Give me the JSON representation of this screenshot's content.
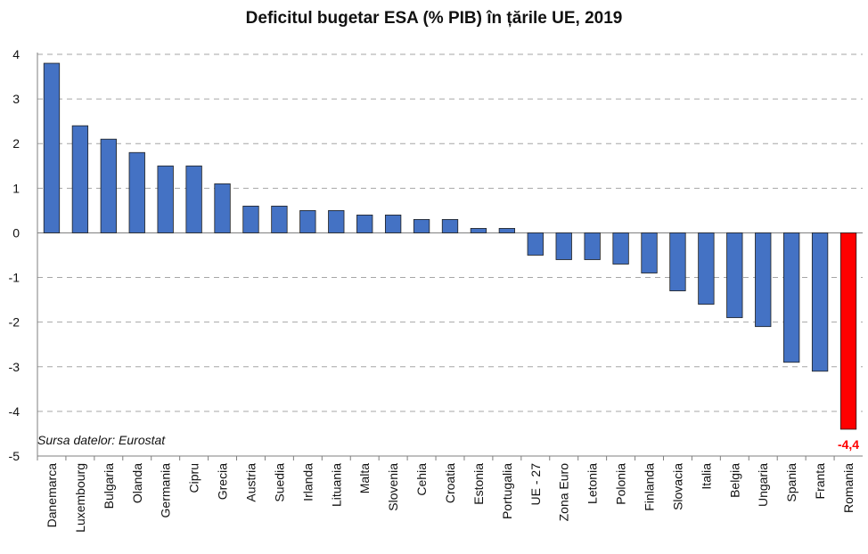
{
  "chart_data": {
    "type": "bar",
    "title": "Deficitul bugetar ESA (% PIB) în țările UE, 2019",
    "source_note": "Sursa datelor: Eurostat",
    "categories": [
      "Danemarca",
      "Luxembourg",
      "Bulgaria",
      "Olanda",
      "Germania",
      "Cipru",
      "Grecia",
      "Austria",
      "Suedia",
      "Irlanda",
      "Lituania",
      "Malta",
      "Slovenia",
      "Cehia",
      "Croatia",
      "Estonia",
      "Portugalia",
      "UE - 27",
      "Zona Euro",
      "Letonia",
      "Polonia",
      "Finlanda",
      "Slovacia",
      "Italia",
      "Belgia",
      "Ungaria",
      "Spania",
      "Franta",
      "Romania"
    ],
    "values": [
      3.8,
      2.4,
      2.1,
      1.8,
      1.5,
      1.5,
      1.1,
      0.6,
      0.6,
      0.5,
      0.5,
      0.4,
      0.4,
      0.3,
      0.3,
      0.1,
      0.1,
      -0.5,
      -0.6,
      -0.6,
      -0.7,
      -0.9,
      -1.3,
      -1.6,
      -1.9,
      -2.1,
      -2.9,
      -3.1,
      -4.4
    ],
    "ylim": [
      -5,
      4
    ],
    "yticks": [
      "4",
      "3",
      "2",
      "1",
      "0",
      "-1",
      "-2",
      "-3",
      "-4",
      "-5"
    ],
    "grid": true,
    "bar_color": "#4472C4",
    "highlight": {
      "category": "Romania",
      "color": "#FF0000",
      "label": "-4,4"
    },
    "xlabel": "",
    "ylabel": ""
  }
}
